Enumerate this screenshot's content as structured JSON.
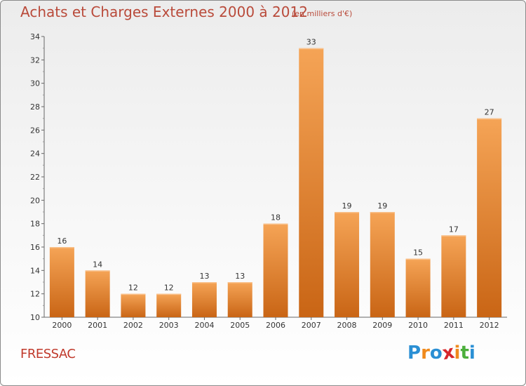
{
  "title": "Achats et Charges Externes 2000 à 2012",
  "subtitle": "(en milliers d'€)",
  "commune": "FRESSAC",
  "logo": {
    "letters": [
      "P",
      "r",
      "o",
      "x",
      "i",
      "t",
      "i"
    ],
    "colors": [
      "#2a8fd4",
      "#f08a1c",
      "#2a8fd4",
      "#d6262b",
      "#f08a1c",
      "#4caf3c",
      "#2a8fd4"
    ]
  },
  "colors": {
    "bar_top": "#f5a456",
    "bar_bottom": "#c96515",
    "text": "#333333",
    "title": "#b94a3a",
    "commune": "#c0392b"
  },
  "chart_data": {
    "type": "bar",
    "categories": [
      "2000",
      "2001",
      "2002",
      "2003",
      "2004",
      "2005",
      "2006",
      "2007",
      "2008",
      "2009",
      "2010",
      "2011",
      "2012"
    ],
    "values": [
      16,
      14,
      12,
      12,
      13,
      13,
      18,
      33,
      19,
      19,
      15,
      17,
      27
    ],
    "data_labels": [
      "16",
      "14",
      "12",
      "12",
      "13",
      "13",
      "18",
      "33",
      "19",
      "19",
      "15",
      "17",
      "27"
    ],
    "yticks": [
      "10",
      "12",
      "14",
      "16",
      "18",
      "20",
      "22",
      "24",
      "26",
      "28",
      "30",
      "32",
      "34"
    ],
    "ylim": [
      10,
      34
    ],
    "grid": false
  }
}
